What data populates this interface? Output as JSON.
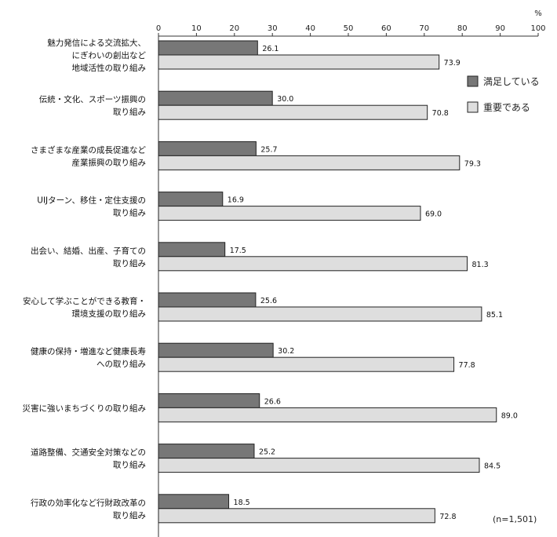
{
  "chart_data": {
    "type": "bar",
    "orientation": "horizontal",
    "unit": "%",
    "xlim": [
      0,
      100
    ],
    "ticks": [
      0,
      10,
      20,
      30,
      40,
      50,
      60,
      70,
      80,
      90,
      100
    ],
    "categories": [
      [
        "魅力発信による交流拡大、",
        "にぎわいの創出など",
        "地域活性の取り組み"
      ],
      [
        "伝統・文化、スポーツ振興の",
        "取り組み"
      ],
      [
        "さまざまな産業の成長促進など",
        "産業振興の取り組み"
      ],
      [
        "UIJターン、移住・定住支援の",
        "取り組み"
      ],
      [
        "出会い、結婚、出産、子育ての",
        "取り組み"
      ],
      [
        "安心して学ぶことができる教育・",
        "環境支援の取り組み"
      ],
      [
        "健康の保持・増進など健康長寿",
        "への取り組み"
      ],
      [
        "災害に強いまちづくりの取り組み"
      ],
      [
        "道路整備、交通安全対策などの",
        "取り組み"
      ],
      [
        "行政の効率化など行財政改革の",
        "取り組み"
      ]
    ],
    "series": [
      {
        "name": "満足している",
        "color": "#777777",
        "values": [
          26.1,
          30.0,
          25.7,
          16.9,
          17.5,
          25.6,
          30.2,
          26.6,
          25.2,
          18.5
        ]
      },
      {
        "name": "重要である",
        "color": "#dedede",
        "values": [
          73.9,
          70.8,
          79.3,
          69.0,
          81.3,
          85.1,
          77.8,
          89.0,
          84.5,
          72.8
        ]
      }
    ],
    "legend_position": "right",
    "note": "(n=1,501)"
  }
}
